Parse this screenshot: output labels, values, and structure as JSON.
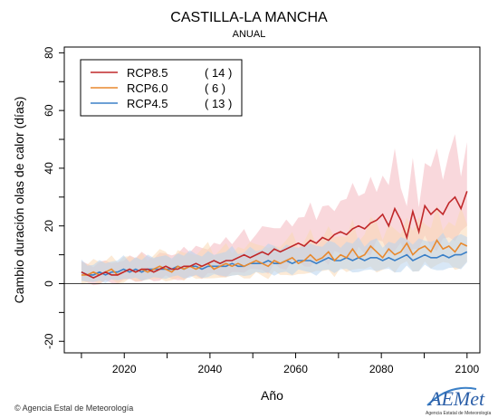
{
  "page": {
    "title": "CASTILLA-LA MANCHA",
    "subtitle": "ANUAL",
    "credit": "Agencia Estal de Meteorología",
    "logo_text": "AEMet",
    "logo_subtext": "Agencia Estatal de Meteorología"
  },
  "chart_data": {
    "type": "line",
    "title": "CASTILLA-LA MANCHA",
    "subtitle": "ANUAL",
    "xlabel": "Año",
    "ylabel": "Cambio duración olas de calor (días)",
    "xlim": [
      2006,
      2103
    ],
    "ylim": [
      -24,
      82
    ],
    "x_ticks": [
      2020,
      2040,
      2060,
      2080,
      2100
    ],
    "y_ticks": [
      -20,
      0,
      20,
      40,
      60,
      80
    ],
    "zero_line": 0,
    "grid": false,
    "legend_position": "top-left",
    "x_start": 2010,
    "x_end": 2100,
    "series": [
      {
        "name": "RCP8.5",
        "count": "( 14 )",
        "color": "#c0282a",
        "band_color": "#f4b8c0",
        "values": [
          4,
          3,
          2,
          3,
          4,
          3,
          3,
          4,
          5,
          4,
          5,
          5,
          4,
          5,
          6,
          5,
          5,
          6,
          6,
          7,
          6,
          7,
          8,
          7,
          8,
          8,
          9,
          10,
          9,
          10,
          11,
          10,
          12,
          11,
          12,
          13,
          14,
          13,
          15,
          14,
          16,
          15,
          17,
          18,
          17,
          19,
          20,
          19,
          21,
          22,
          24,
          20,
          26,
          22,
          16,
          25,
          18,
          27,
          24,
          26,
          24,
          28,
          30,
          26,
          32
        ]
      },
      {
        "name": "RCP6.0",
        "count": "(  6 )",
        "color": "#e8892e",
        "band_color": "#fad8b4",
        "values": [
          3,
          3,
          4,
          3,
          4,
          5,
          3,
          4,
          5,
          4,
          5,
          4,
          5,
          6,
          5,
          4,
          6,
          5,
          6,
          5,
          6,
          7,
          5,
          6,
          7,
          6,
          7,
          6,
          7,
          8,
          7,
          6,
          8,
          7,
          8,
          9,
          7,
          8,
          10,
          8,
          9,
          11,
          8,
          10,
          9,
          12,
          9,
          10,
          13,
          11,
          9,
          12,
          10,
          11,
          14,
          10,
          12,
          13,
          11,
          15,
          12,
          13,
          11,
          14,
          13
        ]
      },
      {
        "name": "RCP4.5",
        "count": "( 13 )",
        "color": "#3b80c7",
        "band_color": "#b8d4ee",
        "values": [
          4,
          3,
          3,
          4,
          3,
          4,
          4,
          5,
          4,
          5,
          4,
          5,
          5,
          5,
          5,
          5,
          6,
          5,
          6,
          6,
          5,
          6,
          6,
          6,
          6,
          7,
          6,
          6,
          7,
          7,
          7,
          8,
          7,
          7,
          8,
          7,
          8,
          8,
          8,
          7,
          8,
          9,
          8,
          8,
          9,
          8,
          9,
          8,
          9,
          9,
          8,
          9,
          8,
          9,
          10,
          8,
          9,
          10,
          9,
          9,
          10,
          9,
          10,
          10,
          11
        ]
      }
    ]
  }
}
